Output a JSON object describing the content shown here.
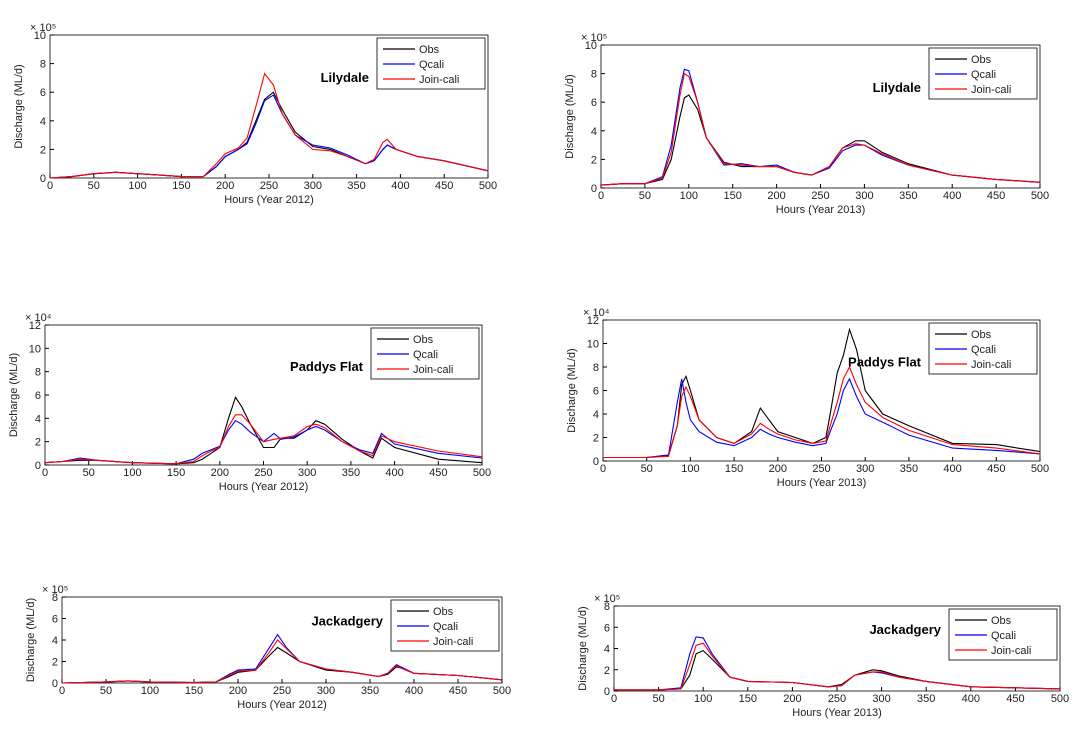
{
  "chart_data": [
    {
      "type": "line",
      "title": "Lilydale",
      "xlabel": "Hours (Year 2012)",
      "ylabel": "Discharge (ML/d)",
      "y_exponent_label": "× 10⁵",
      "x": [
        0,
        25,
        50,
        75,
        100,
        125,
        150,
        175,
        190,
        200,
        215,
        225,
        235,
        245,
        255,
        265,
        280,
        300,
        320,
        340,
        360,
        370,
        380,
        385,
        395,
        420,
        450,
        500
      ],
      "series": [
        {
          "name": "Obs",
          "color": "#000000",
          "values": [
            0,
            0.1,
            0.3,
            0.4,
            0.3,
            0.2,
            0.1,
            0.1,
            0.8,
            1.5,
            2.0,
            2.5,
            4.0,
            5.5,
            6.0,
            4.8,
            3.2,
            2.2,
            2.0,
            1.5,
            1.0,
            1.2,
            2.0,
            2.3,
            2.0,
            1.5,
            1.2,
            0.5
          ]
        },
        {
          "name": "Qcali",
          "color": "#0000ff",
          "values": [
            0,
            0.1,
            0.3,
            0.4,
            0.3,
            0.2,
            0.1,
            0.1,
            0.8,
            1.5,
            2.0,
            2.4,
            3.8,
            5.4,
            5.8,
            4.5,
            3.0,
            2.3,
            2.1,
            1.6,
            1.0,
            1.2,
            2.0,
            2.3,
            2.0,
            1.5,
            1.2,
            0.5
          ]
        },
        {
          "name": "Join-cali",
          "color": "#ff0000",
          "values": [
            0,
            0.1,
            0.3,
            0.4,
            0.3,
            0.2,
            0.1,
            0.1,
            1.0,
            1.7,
            2.1,
            2.8,
            5.0,
            7.3,
            6.5,
            4.5,
            3.0,
            2.0,
            1.9,
            1.5,
            1.0,
            1.3,
            2.5,
            2.7,
            2.0,
            1.5,
            1.2,
            0.5
          ]
        }
      ],
      "xlim": [
        0,
        500
      ],
      "xticks": [
        0,
        50,
        100,
        150,
        200,
        250,
        300,
        350,
        400,
        450,
        500
      ],
      "ylim": [
        0,
        10
      ],
      "yticks": [
        0,
        2,
        4,
        6,
        8,
        10
      ],
      "legend": "upper right"
    },
    {
      "type": "line",
      "title": "Lilydale",
      "xlabel": "Hours (Year 2013)",
      "ylabel": "Discharge (ML/d)",
      "y_exponent_label": "× 10⁵",
      "x": [
        0,
        25,
        50,
        70,
        80,
        90,
        95,
        100,
        110,
        120,
        140,
        160,
        180,
        200,
        220,
        240,
        260,
        275,
        290,
        300,
        320,
        350,
        400,
        450,
        500
      ],
      "series": [
        {
          "name": "Obs",
          "color": "#000000",
          "values": [
            0.2,
            0.3,
            0.3,
            0.6,
            2,
            5,
            6.3,
            6.5,
            5.5,
            3.5,
            1.8,
            1.5,
            1.5,
            1.5,
            1.1,
            0.9,
            1.5,
            2.8,
            3.3,
            3.3,
            2.5,
            1.7,
            0.9,
            0.6,
            0.4
          ]
        },
        {
          "name": "Qcali",
          "color": "#0000ff",
          "values": [
            0.2,
            0.3,
            0.3,
            0.8,
            3,
            7,
            8.3,
            8.2,
            6,
            3.5,
            1.6,
            1.7,
            1.5,
            1.6,
            1.1,
            0.9,
            1.4,
            2.6,
            3.0,
            3.0,
            2.3,
            1.6,
            0.9,
            0.6,
            0.4
          ]
        },
        {
          "name": "Join-cali",
          "color": "#ff0000",
          "values": [
            0.2,
            0.3,
            0.3,
            0.7,
            2.5,
            6.5,
            8.0,
            7.8,
            6,
            3.5,
            1.7,
            1.6,
            1.5,
            1.5,
            1.1,
            0.9,
            1.5,
            2.8,
            3.1,
            3.0,
            2.4,
            1.6,
            0.9,
            0.6,
            0.4
          ]
        }
      ],
      "xlim": [
        0,
        500
      ],
      "xticks": [
        0,
        50,
        100,
        150,
        200,
        250,
        300,
        350,
        400,
        450,
        500
      ],
      "ylim": [
        0,
        10
      ],
      "yticks": [
        0,
        2,
        4,
        6,
        8,
        10
      ],
      "legend": "upper right"
    },
    {
      "type": "line",
      "title": "Paddys Flat",
      "xlabel": "Hours (Year 2012)",
      "ylabel": "Discharge (ML/d)",
      "y_exponent_label": "× 10⁴",
      "x": [
        0,
        20,
        40,
        60,
        100,
        150,
        170,
        180,
        190,
        200,
        210,
        218,
        225,
        235,
        250,
        262,
        270,
        285,
        300,
        310,
        320,
        340,
        360,
        375,
        385,
        400,
        450,
        500
      ],
      "series": [
        {
          "name": "Obs",
          "color": "#000000",
          "values": [
            0.2,
            0.3,
            0.4,
            0.4,
            0.2,
            0.1,
            0.2,
            0.5,
            1.0,
            1.5,
            4.0,
            5.8,
            5.0,
            3.5,
            1.5,
            1.5,
            2.3,
            2.3,
            3.0,
            3.8,
            3.5,
            2.2,
            1.2,
            0.6,
            2.3,
            1.5,
            0.5,
            0.2
          ]
        },
        {
          "name": "Qcali",
          "color": "#0000ff",
          "values": [
            0.2,
            0.3,
            0.6,
            0.4,
            0.2,
            0.1,
            0.5,
            1.0,
            1.3,
            1.6,
            3.0,
            3.8,
            3.5,
            2.8,
            2.0,
            2.7,
            2.2,
            2.4,
            3.0,
            3.3,
            3.0,
            2.0,
            1.3,
            1.0,
            2.7,
            1.8,
            1.0,
            0.6
          ]
        },
        {
          "name": "Join-cali",
          "color": "#ff0000",
          "values": [
            0.2,
            0.3,
            0.5,
            0.4,
            0.2,
            0.1,
            0.3,
            0.8,
            1.2,
            1.5,
            3.3,
            4.3,
            4.3,
            3.5,
            2.0,
            2.2,
            2.3,
            2.5,
            3.3,
            3.5,
            3.2,
            2.0,
            1.2,
            0.8,
            2.5,
            2.0,
            1.2,
            0.7
          ]
        }
      ],
      "xlim": [
        0,
        500
      ],
      "xticks": [
        0,
        50,
        100,
        150,
        200,
        250,
        300,
        350,
        400,
        450,
        500
      ],
      "ylim": [
        0,
        12
      ],
      "yticks": [
        0,
        2,
        4,
        6,
        8,
        10,
        12
      ],
      "legend": "upper right"
    },
    {
      "type": "line",
      "title": "Paddys Flat",
      "xlabel": "Hours (Year 2013)",
      "ylabel": "Discharge (ML/d)",
      "y_exponent_label": "× 10⁴",
      "x": [
        0,
        50,
        75,
        85,
        90,
        95,
        100,
        110,
        130,
        150,
        170,
        180,
        190,
        200,
        220,
        240,
        255,
        260,
        268,
        275,
        282,
        290,
        300,
        320,
        350,
        400,
        450,
        500
      ],
      "series": [
        {
          "name": "Obs",
          "color": "#000000",
          "values": [
            0.3,
            0.3,
            0.5,
            3,
            6.5,
            7.2,
            6,
            3.5,
            2,
            1.5,
            2.5,
            4.5,
            3.5,
            2.5,
            2,
            1.5,
            2,
            4,
            7.5,
            9,
            11.2,
            9.5,
            6,
            4,
            3,
            1.5,
            1.4,
            0.8
          ]
        },
        {
          "name": "Qcali",
          "color": "#0000ff",
          "values": [
            0.3,
            0.3,
            0.5,
            5,
            7,
            5,
            3.5,
            2.5,
            1.6,
            1.3,
            2,
            2.7,
            2.3,
            2,
            1.6,
            1.3,
            1.5,
            2.5,
            4,
            6,
            7,
            5.5,
            4,
            3.3,
            2.2,
            1.1,
            0.9,
            0.6
          ]
        },
        {
          "name": "Join-cali",
          "color": "#ff0000",
          "values": [
            0.3,
            0.3,
            0.4,
            3,
            5.5,
            6.3,
            5.5,
            3.5,
            2,
            1.5,
            2.3,
            3.2,
            2.7,
            2.3,
            1.8,
            1.5,
            1.7,
            3,
            5,
            7,
            8,
            6.5,
            5,
            3.7,
            2.6,
            1.4,
            1.1,
            0.6
          ]
        }
      ],
      "xlim": [
        0,
        500
      ],
      "xticks": [
        0,
        50,
        100,
        150,
        200,
        250,
        300,
        350,
        400,
        450,
        500
      ],
      "ylim": [
        0,
        12
      ],
      "yticks": [
        0,
        2,
        4,
        6,
        8,
        10,
        12
      ],
      "legend": "upper right"
    },
    {
      "type": "line",
      "title": "Jackadgery",
      "xlabel": "Hours (Year 2012)",
      "ylabel": "Discharge (ML/d)",
      "y_exponent_label": "× 10⁵",
      "x": [
        0,
        50,
        75,
        100,
        150,
        175,
        190,
        200,
        220,
        235,
        245,
        255,
        270,
        300,
        330,
        360,
        370,
        380,
        385,
        400,
        450,
        500
      ],
      "series": [
        {
          "name": "Obs",
          "color": "#000000",
          "values": [
            0,
            0.1,
            0.2,
            0.1,
            0.05,
            0.1,
            0.6,
            1.0,
            1.2,
            2.5,
            3.3,
            2.8,
            2.0,
            1.2,
            1.0,
            0.6,
            0.8,
            1.5,
            1.4,
            0.9,
            0.7,
            0.3
          ]
        },
        {
          "name": "Qcali",
          "color": "#0000ff",
          "values": [
            0,
            0.1,
            0.2,
            0.1,
            0.05,
            0.1,
            0.8,
            1.2,
            1.3,
            3.2,
            4.5,
            3.3,
            2.0,
            1.3,
            1.0,
            0.6,
            0.9,
            1.7,
            1.5,
            0.9,
            0.7,
            0.3
          ]
        },
        {
          "name": "Join-cali",
          "color": "#ff0000",
          "values": [
            0,
            0.1,
            0.2,
            0.1,
            0.05,
            0.1,
            0.7,
            1.1,
            1.2,
            2.8,
            4.0,
            3.2,
            2.0,
            1.3,
            1.0,
            0.6,
            0.9,
            1.6,
            1.4,
            0.9,
            0.7,
            0.3
          ]
        }
      ],
      "xlim": [
        0,
        500
      ],
      "xticks": [
        0,
        50,
        100,
        150,
        200,
        250,
        300,
        350,
        400,
        450,
        500
      ],
      "ylim": [
        0,
        8
      ],
      "yticks": [
        0,
        2,
        4,
        6,
        8
      ],
      "legend": "upper right"
    },
    {
      "type": "line",
      "title": "Jackadgery",
      "xlabel": "Hours (Year 2013)",
      "ylabel": "Discharge (ML/d)",
      "y_exponent_label": "× 10⁵",
      "x": [
        0,
        50,
        75,
        85,
        92,
        100,
        110,
        130,
        150,
        200,
        240,
        255,
        270,
        290,
        300,
        320,
        350,
        400,
        450,
        500
      ],
      "series": [
        {
          "name": "Obs",
          "color": "#000000",
          "values": [
            0.1,
            0.1,
            0.2,
            1.5,
            3.5,
            3.8,
            3.0,
            1.3,
            0.9,
            0.8,
            0.4,
            0.6,
            1.5,
            2.0,
            1.9,
            1.4,
            0.9,
            0.4,
            0.3,
            0.2
          ]
        },
        {
          "name": "Qcali",
          "color": "#0000ff",
          "values": [
            0.1,
            0.1,
            0.3,
            3.5,
            5.1,
            5.0,
            3.5,
            1.3,
            0.9,
            0.8,
            0.4,
            0.5,
            1.5,
            1.8,
            1.7,
            1.3,
            0.9,
            0.4,
            0.3,
            0.2
          ]
        },
        {
          "name": "Join-cali",
          "color": "#ff0000",
          "values": [
            0.1,
            0.1,
            0.2,
            2.5,
            4.3,
            4.5,
            3.3,
            1.3,
            0.9,
            0.8,
            0.4,
            0.5,
            1.5,
            1.8,
            1.8,
            1.3,
            0.9,
            0.4,
            0.3,
            0.2
          ]
        }
      ],
      "xlim": [
        0,
        500
      ],
      "xticks": [
        0,
        50,
        100,
        150,
        200,
        250,
        300,
        350,
        400,
        450,
        500
      ],
      "ylim": [
        0,
        8
      ],
      "yticks": [
        0,
        2,
        4,
        6,
        8
      ],
      "legend": "upper right"
    }
  ]
}
